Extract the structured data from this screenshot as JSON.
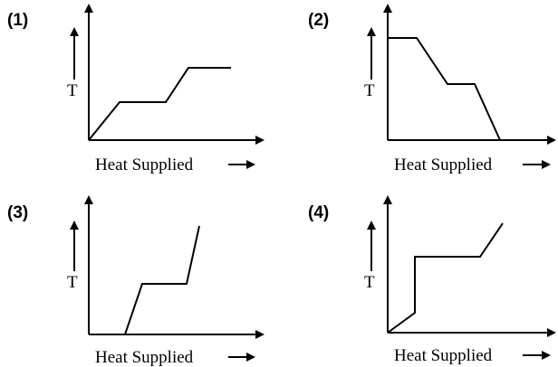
{
  "panels": [
    {
      "label": "(1)",
      "y_label": "T",
      "x_label": "Heat Supplied"
    },
    {
      "label": "(2)",
      "y_label": "T",
      "x_label": "Heat Supplied"
    },
    {
      "label": "(3)",
      "y_label": "T",
      "x_label": "Heat Supplied"
    },
    {
      "label": "(4)",
      "y_label": "T",
      "x_label": "Heat Supplied"
    }
  ]
}
